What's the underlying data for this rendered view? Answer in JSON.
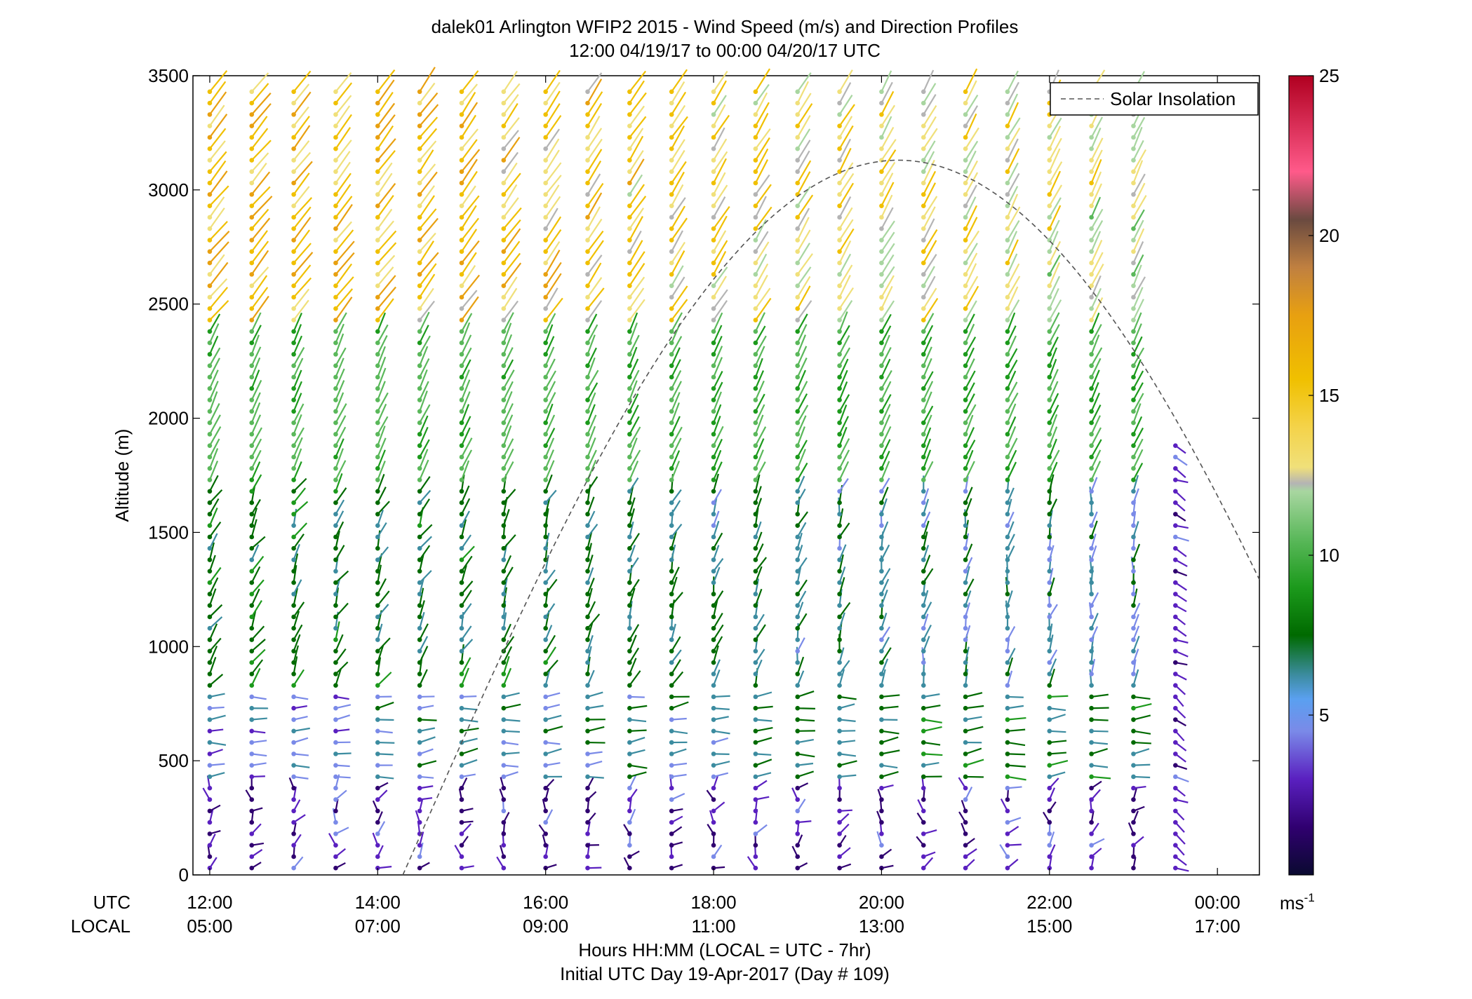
{
  "chart_data": {
    "type": "wind-barb-profile",
    "title_line1": "dalek01 Arlington WFIP2 2015 - Wind Speed (m/s) and Direction Profiles",
    "title_line2": "12:00 04/19/17 to 00:00 04/20/17  UTC",
    "ylabel": "Altitude (m)",
    "ylim": [
      0,
      3500
    ],
    "yticks": [
      "0",
      "500",
      "1000",
      "1500",
      "2000",
      "2500",
      "3000",
      "3500"
    ],
    "xlim_hours": [
      11.8,
      24.5
    ],
    "utc_label": "UTC",
    "local_label": "LOCAL",
    "utc_ticks": [
      "12:00",
      "14:00",
      "16:00",
      "18:00",
      "20:00",
      "22:00",
      "00:00"
    ],
    "local_ticks": [
      "05:00",
      "07:00",
      "09:00",
      "11:00",
      "13:00",
      "15:00",
      "17:00"
    ],
    "xlabel_line1": "Hours HH:MM  (LOCAL = UTC - 7hr)",
    "xlabel_line2": "Initial UTC Day 19-Apr-2017 (Day # 109)",
    "legend": {
      "label": "Solar Insolation",
      "position": "top-right"
    },
    "colorbar": {
      "range": [
        0,
        25
      ],
      "ticks": [
        "5",
        "10",
        "15",
        "20",
        "25"
      ],
      "unit_base": "ms",
      "unit_sup": "-1"
    },
    "solar_insolation": {
      "start_hour": 14.3,
      "peak_hour": 20.2,
      "peak_altitude_m": 3130,
      "end_hour": 24.5,
      "end_altitude_m": 1420
    },
    "profiles": {
      "start_hour": 12.0,
      "interval_hours": 0.5,
      "count": 24,
      "top_altitudes_m": [
        3470,
        3470,
        3470,
        3470,
        3470,
        3470,
        3470,
        3470,
        3470,
        3470,
        3470,
        3470,
        3470,
        3470,
        3470,
        3470,
        3470,
        3470,
        3470,
        3470,
        3470,
        3470,
        3470,
        1910
      ],
      "vertical_step_m": 50,
      "notes": "near-surface winds 2-4 m/s, mid levels 6-10 m/s, upper levels 13-20 m/s"
    },
    "colors": {
      "axis": "#000000",
      "solar_line": "#555555"
    }
  }
}
